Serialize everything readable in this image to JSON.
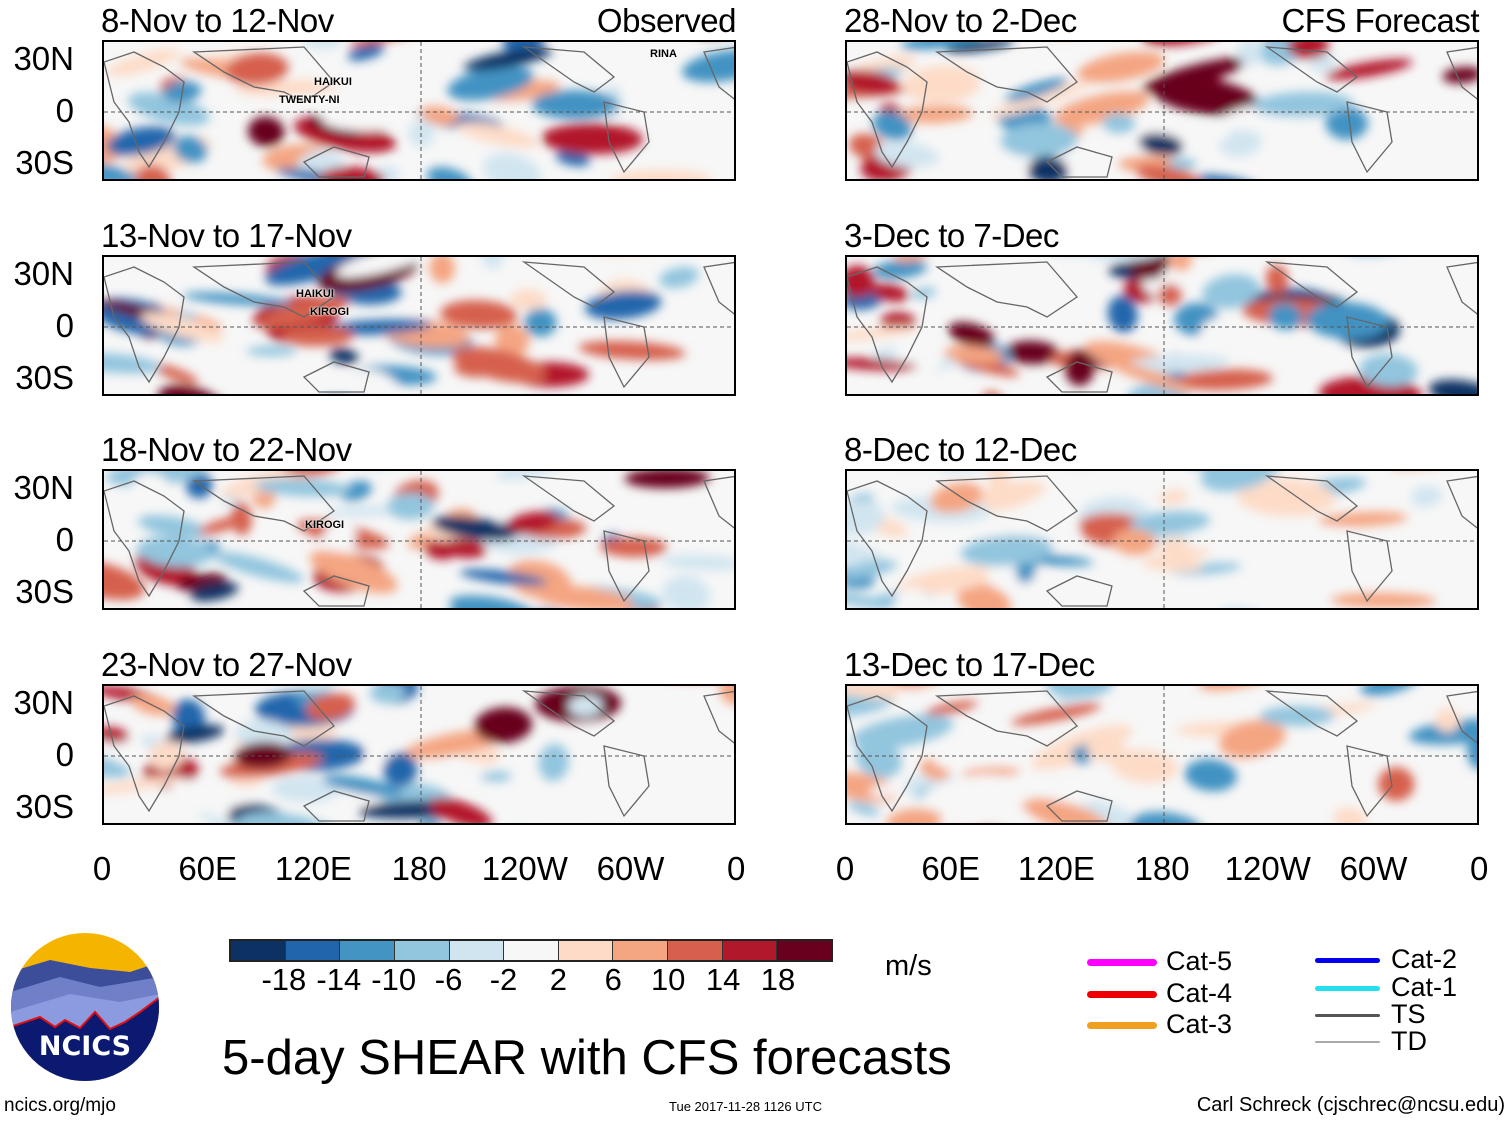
{
  "panels": [
    {
      "title": "8-Nov to 12-Nov",
      "tag": "Observed",
      "seed": 11,
      "storms": [
        {
          "name": "RINA"
        },
        {
          "name": "TWENTY-NI"
        },
        {
          "name": "HAIKUI"
        }
      ]
    },
    {
      "title": "13-Nov to 17-Nov",
      "tag": "",
      "seed": 23,
      "storms": [
        {
          "name": "HAIKUI"
        },
        {
          "name": "KIROGI"
        }
      ]
    },
    {
      "title": "18-Nov to 22-Nov",
      "tag": "",
      "seed": 37,
      "storms": [
        {
          "name": "KIROGI"
        }
      ]
    },
    {
      "title": "23-Nov to 27-Nov",
      "tag": "",
      "seed": 41,
      "storms": []
    },
    {
      "title": "28-Nov to 2-Dec",
      "tag": "CFS Forecast",
      "seed": 53,
      "storms": []
    },
    {
      "title": "3-Dec to 7-Dec",
      "tag": "",
      "seed": 67,
      "storms": []
    },
    {
      "title": "8-Dec to 12-Dec",
      "tag": "",
      "seed": 71,
      "storms": []
    },
    {
      "title": "13-Dec to 17-Dec",
      "tag": "",
      "seed": 89,
      "storms": []
    }
  ],
  "lat_labels": [
    "30N",
    "0",
    "30S"
  ],
  "lon_labels": [
    "0",
    "60E",
    "120E",
    "180",
    "120W",
    "60W",
    "0"
  ],
  "colorbar": {
    "colors": [
      "#0b3263",
      "#2166ac",
      "#4393c3",
      "#92c5de",
      "#d1e5f0",
      "#f7f7f7",
      "#fddbc7",
      "#f4a582",
      "#d6604d",
      "#b2182b",
      "#67001f"
    ],
    "labels": [
      "-18",
      "-14",
      "-10",
      "-6",
      "-2",
      "2",
      "6",
      "10",
      "14",
      "18"
    ],
    "units": "m/s"
  },
  "legend": [
    {
      "label": "Cat-5",
      "color": "#ff00ff"
    },
    {
      "label": "Cat-4",
      "color": "#ee0000"
    },
    {
      "label": "Cat-3",
      "color": "#f0a020"
    },
    {
      "label": "Cat-2",
      "color": "#0000ee"
    },
    {
      "label": "Cat-1",
      "color": "#22e0f0"
    },
    {
      "label": "TS",
      "color": "#555555"
    },
    {
      "label": "TD",
      "color": "#aaaaaa"
    }
  ],
  "title": "5-day SHEAR with CFS forecasts",
  "logo_text": "NCICS",
  "url": "ncics.org/mjo",
  "timestamp": "Tue 2017-11-28 1126 UTC",
  "credit": "Carl Schreck (cjschrec@ncsu.edu)"
}
